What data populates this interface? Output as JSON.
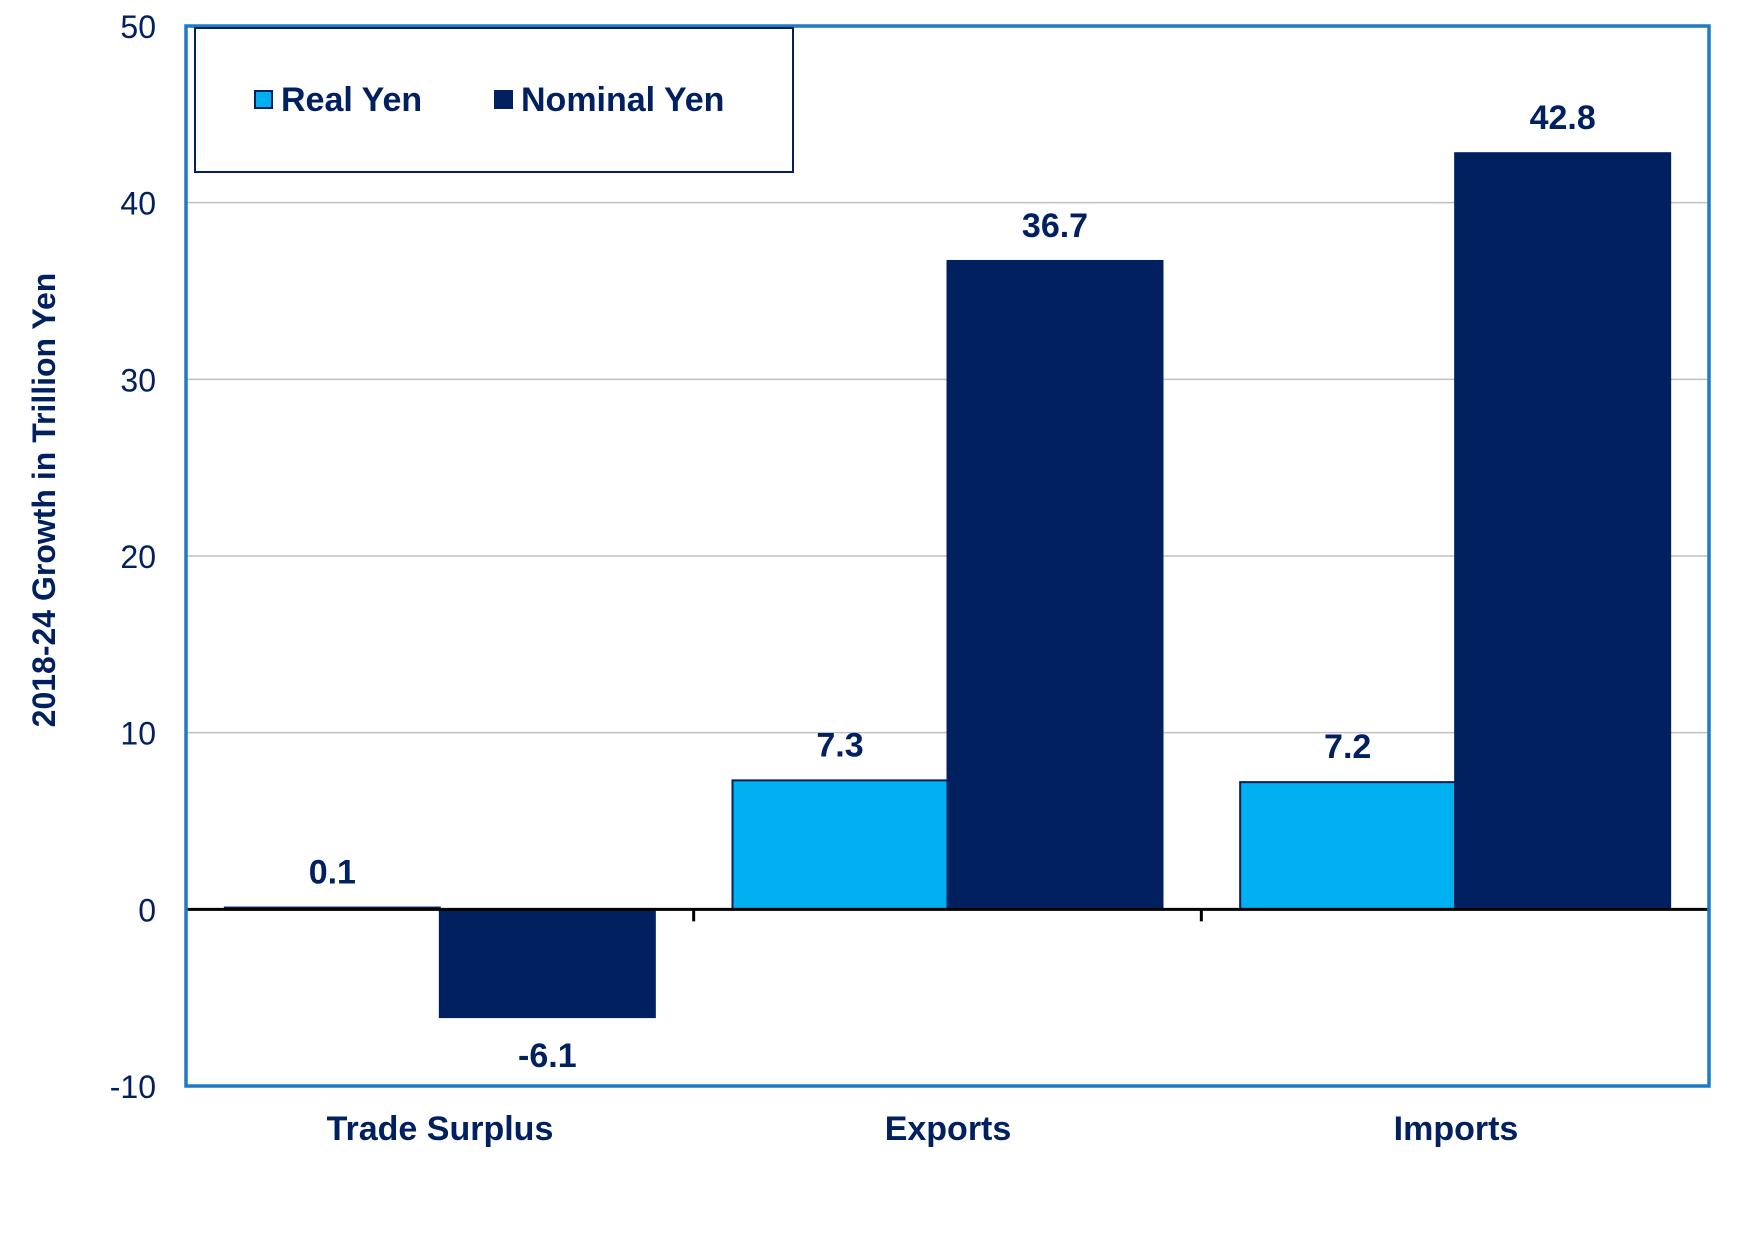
{
  "chart_data": {
    "type": "bar",
    "categories": [
      "Trade Surplus",
      "Exports",
      "Imports"
    ],
    "series": [
      {
        "name": "Real Yen",
        "values": [
          0.1,
          7.3,
          7.2
        ]
      },
      {
        "name": "Nominal Yen",
        "values": [
          -6.1,
          36.7,
          42.8
        ]
      }
    ],
    "data_labels": [
      [
        "0.1",
        "7.3",
        "7.2"
      ],
      [
        "-6.1",
        "36.7",
        "42.8"
      ]
    ],
    "ylabel": "2018-24 Growth in Trillion Yen",
    "xlabel": "",
    "ylim": [
      -10,
      50
    ],
    "yticks": [
      -10,
      0,
      10,
      20,
      30,
      40,
      50
    ],
    "grid": true,
    "legend_position": "top-left",
    "colors": {
      "real": "#00b0f0",
      "nominal": "#002060",
      "frame": "#1f7ac4",
      "grid": "#c0c0c0",
      "text": "#002060",
      "zero_line": "#000000"
    }
  }
}
